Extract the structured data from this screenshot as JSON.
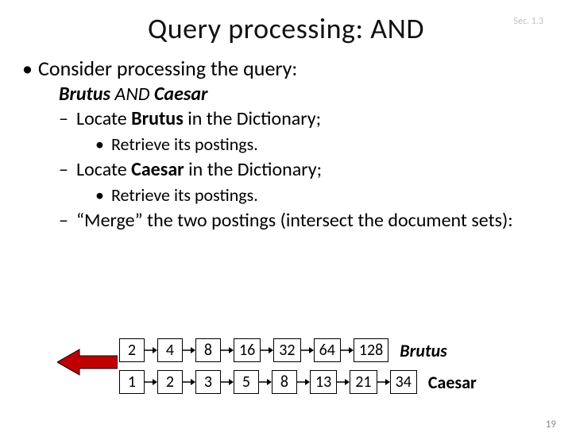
{
  "sec_label": "Sec. 1.3",
  "title": "Query processing: AND",
  "bullet1": "Consider processing the query:",
  "query_line_parts": {
    "a": "Brutus",
    "b": " AND ",
    "c": "Caesar"
  },
  "locate1_pre": "Locate ",
  "locate1_term": "Brutus",
  "locate1_post": " in the Dictionary;",
  "retrieve": "Retrieve its postings.",
  "locate2_pre": "Locate ",
  "locate2_term": "Caesar",
  "locate2_post": " in the Dictionary;",
  "merge_line": "“Merge” the two postings (intersect the document sets):",
  "postings": {
    "row1": [
      "2",
      "4",
      "8",
      "16",
      "32",
      "64",
      "128"
    ],
    "row2": [
      "1",
      "2",
      "3",
      "5",
      "8",
      "13",
      "21",
      "34"
    ],
    "label1": "Brutus",
    "label2": "Caesar"
  },
  "arrow": {
    "fill": "#c00000",
    "stroke": "#000000"
  },
  "small_arrow_color": "#000000",
  "page_number": "19"
}
